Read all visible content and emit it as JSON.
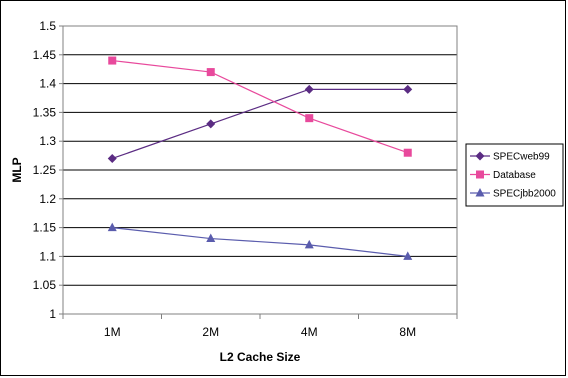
{
  "chart_data": {
    "type": "line",
    "title": "",
    "xlabel": "L2 Cache Size",
    "ylabel": "MLP",
    "categories": [
      "1M",
      "2M",
      "4M",
      "8M"
    ],
    "ylim": [
      1,
      1.5
    ],
    "yticks": [
      "1",
      "1.05",
      "1.1",
      "1.15",
      "1.2",
      "1.25",
      "1.3",
      "1.35",
      "1.4",
      "1.45",
      "1.5"
    ],
    "grid": true,
    "legend_position": "right",
    "series": [
      {
        "name": "SPECweb99",
        "values": [
          1.27,
          1.33,
          1.39,
          1.39
        ],
        "color": "#5b2c83",
        "marker": "diamond"
      },
      {
        "name": "Database",
        "values": [
          1.44,
          1.42,
          1.34,
          1.28
        ],
        "color": "#e8499c",
        "marker": "square"
      },
      {
        "name": "SPECjbb2000",
        "values": [
          1.15,
          1.131,
          1.12,
          1.1
        ],
        "color": "#5a5cad",
        "marker": "triangle"
      }
    ]
  }
}
